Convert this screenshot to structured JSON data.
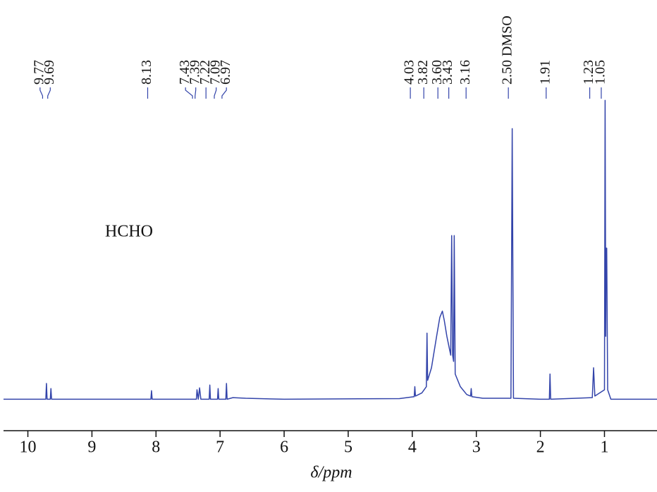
{
  "chart_data": {
    "type": "line",
    "annotation": "HCHO",
    "xlabel": "δ/ppm",
    "xlim": [
      10.38,
      0.18
    ],
    "xticks": [
      10,
      9,
      8,
      7,
      6,
      5,
      4,
      3,
      2,
      1
    ],
    "ylim": [
      -10,
      100
    ],
    "color": "#3344aa",
    "peak_labels": [
      {
        "value": 9.77,
        "label": "9.77"
      },
      {
        "value": 9.69,
        "label": "9.69"
      },
      {
        "value": 8.13,
        "label": "8.13"
      },
      {
        "value": 7.43,
        "label": "7.43"
      },
      {
        "value": 7.39,
        "label": "7.39"
      },
      {
        "value": 7.22,
        "label": "7.22"
      },
      {
        "value": 7.09,
        "label": "7.09"
      },
      {
        "value": 6.97,
        "label": "6.97"
      },
      {
        "value": 4.03,
        "label": "4.03"
      },
      {
        "value": 3.82,
        "label": "3.82"
      },
      {
        "value": 3.6,
        "label": "3.60"
      },
      {
        "value": 3.43,
        "label": "3.43"
      },
      {
        "value": 3.16,
        "label": "3.16"
      },
      {
        "value": 2.5,
        "label": "2.50 DMSO"
      },
      {
        "value": 1.91,
        "label": "1.91"
      },
      {
        "value": 1.23,
        "label": "1.23"
      },
      {
        "value": 1.05,
        "label": "1.05"
      }
    ],
    "x": [
      10.38,
      9.72,
      9.71,
      9.7,
      9.65,
      9.64,
      9.63,
      8.08,
      8.07,
      8.06,
      7.37,
      7.36,
      7.34,
      7.32,
      7.3,
      7.17,
      7.16,
      7.15,
      7.04,
      7.03,
      7.02,
      6.91,
      6.9,
      6.89,
      6.8,
      6.6,
      6.0,
      4.2,
      3.97,
      3.96,
      3.95,
      3.85,
      3.78,
      3.77,
      3.76,
      3.7,
      3.62,
      3.57,
      3.53,
      3.5,
      3.46,
      3.4,
      3.385,
      3.37,
      3.355,
      3.345,
      3.33,
      3.25,
      3.15,
      3.09,
      3.08,
      3.07,
      2.9,
      2.46,
      2.44,
      2.42,
      2.0,
      1.86,
      1.85,
      1.84,
      1.19,
      1.17,
      1.15,
      1.0,
      0.99,
      0.98,
      0.975,
      0.965,
      0.95,
      0.9,
      0.18
    ],
    "y": [
      0,
      0,
      5,
      0,
      0,
      3.4,
      0,
      0,
      2.7,
      0,
      0,
      3,
      0,
      3.6,
      0,
      0,
      4.5,
      0,
      0,
      3.4,
      0,
      0,
      5,
      0,
      0.5,
      0.3,
      0,
      0.2,
      0.8,
      4,
      1,
      2,
      4,
      21,
      6,
      10,
      20,
      26,
      28,
      25,
      20,
      14,
      52,
      14,
      12,
      52,
      8,
      4,
      1.5,
      1,
      3.4,
      0.8,
      0.3,
      0.3,
      86,
      0.3,
      0,
      0,
      8,
      0,
      0.5,
      10,
      1,
      3,
      95,
      20,
      48,
      48,
      3,
      0,
      0
    ]
  }
}
